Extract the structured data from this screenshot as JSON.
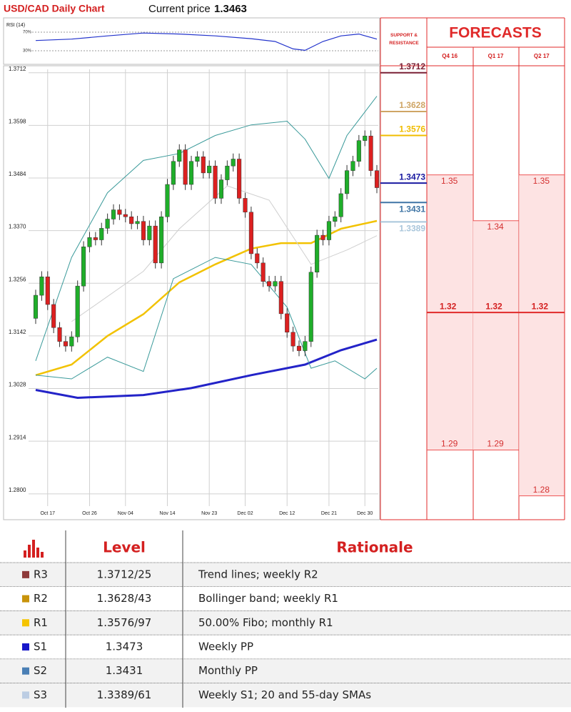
{
  "header": {
    "title": "USD/CAD Daily Chart",
    "current_price_label": "Current price",
    "current_price": 1.3463
  },
  "rsi": {
    "label": "RSI (14)",
    "color": "#2233cc",
    "x": [
      0,
      6,
      12,
      18,
      24,
      30,
      36,
      40,
      43,
      45,
      48,
      51,
      54,
      57
    ],
    "values": [
      52,
      55,
      62,
      68,
      66,
      62,
      56,
      50,
      34,
      31,
      50,
      62,
      66,
      55
    ],
    "ylim": [
      7,
      96
    ],
    "yticks": [
      {
        "value": 70,
        "label": "70%"
      },
      {
        "value": 30,
        "label": "30%"
      }
    ]
  },
  "chart_data": {
    "type": "candlestick",
    "categories": [
      null,
      null,
      "Oct 17",
      null,
      null,
      null,
      null,
      null,
      null,
      "Oct 26",
      null,
      null,
      null,
      null,
      null,
      "Nov 04",
      null,
      null,
      null,
      null,
      null,
      null,
      "Nov 14",
      null,
      null,
      null,
      null,
      null,
      null,
      "Nov 23",
      null,
      null,
      null,
      null,
      null,
      "Dec 02",
      null,
      null,
      null,
      null,
      null,
      null,
      "Dec 12",
      null,
      null,
      null,
      null,
      null,
      null,
      "Dec 21",
      null,
      null,
      null,
      null,
      null,
      "Dec 30",
      null,
      null
    ],
    "open": [
      1.318,
      1.323,
      1.327,
      1.321,
      1.316,
      1.313,
      1.312,
      1.314,
      1.325,
      1.3335,
      1.3355,
      1.335,
      1.3375,
      1.3395,
      1.3415,
      1.3405,
      1.34,
      1.3385,
      1.339,
      1.335,
      1.338,
      1.33,
      1.34,
      1.347,
      1.352,
      1.3545,
      1.347,
      1.352,
      1.353,
      1.3495,
      1.351,
      1.344,
      1.348,
      1.351,
      1.3525,
      1.344,
      1.341,
      1.332,
      1.33,
      1.326,
      1.325,
      1.326,
      1.319,
      1.315,
      1.312,
      1.311,
      1.313,
      1.328,
      1.336,
      1.335,
      1.339,
      1.34,
      1.345,
      1.35,
      1.352,
      1.3565,
      1.3575,
      1.35
    ],
    "high": [
      1.3242,
      1.3282,
      1.3282,
      1.3222,
      1.3172,
      1.3142,
      1.3152,
      1.3262,
      1.3347,
      1.3367,
      1.3367,
      1.3387,
      1.3407,
      1.3427,
      1.3427,
      1.3417,
      1.3412,
      1.3402,
      1.3402,
      1.3392,
      1.3392,
      1.3412,
      1.3482,
      1.3532,
      1.3557,
      1.3557,
      1.3532,
      1.3542,
      1.3542,
      1.3522,
      1.3522,
      1.3492,
      1.3522,
      1.3537,
      1.3537,
      1.3452,
      1.3422,
      1.3332,
      1.3312,
      1.3272,
      1.3272,
      1.3272,
      1.3202,
      1.3162,
      1.3132,
      1.3142,
      1.3292,
      1.3372,
      1.3372,
      1.3402,
      1.3412,
      1.3462,
      1.3512,
      1.3532,
      1.3577,
      1.3587,
      1.3587,
      1.3512
    ],
    "low": [
      1.3168,
      1.3218,
      1.3198,
      1.3148,
      1.3118,
      1.3108,
      1.3108,
      1.3128,
      1.3238,
      1.3323,
      1.3338,
      1.3338,
      1.3363,
      1.3383,
      1.3393,
      1.3388,
      1.3373,
      1.3373,
      1.3338,
      1.3338,
      1.3288,
      1.3288,
      1.3388,
      1.3458,
      1.3508,
      1.3458,
      1.3458,
      1.3508,
      1.3483,
      1.3483,
      1.3428,
      1.3428,
      1.3468,
      1.3498,
      1.3428,
      1.3398,
      1.3308,
      1.3288,
      1.3248,
      1.3238,
      1.3238,
      1.3178,
      1.3138,
      1.3108,
      1.3098,
      1.3098,
      1.3118,
      1.3268,
      1.3338,
      1.3338,
      1.3378,
      1.3388,
      1.3438,
      1.3488,
      1.3508,
      1.3553,
      1.3488,
      1.3451
    ],
    "close": [
      1.323,
      1.327,
      1.321,
      1.316,
      1.313,
      1.312,
      1.314,
      1.325,
      1.3335,
      1.3355,
      1.335,
      1.3375,
      1.3395,
      1.3415,
      1.3405,
      1.34,
      1.3385,
      1.339,
      1.335,
      1.338,
      1.33,
      1.34,
      1.347,
      1.352,
      1.3545,
      1.347,
      1.352,
      1.353,
      1.3495,
      1.351,
      1.344,
      1.348,
      1.351,
      1.3525,
      1.344,
      1.341,
      1.332,
      1.33,
      1.326,
      1.325,
      1.326,
      1.319,
      1.315,
      1.312,
      1.311,
      1.313,
      1.328,
      1.336,
      1.335,
      1.339,
      1.34,
      1.345,
      1.35,
      1.352,
      1.3565,
      1.3575,
      1.35,
      1.3463
    ],
    "up_color": "#1fae2a",
    "down_color": "#dc2020",
    "lines": [
      {
        "color": "#2323c8",
        "width": 3,
        "x": [
          0,
          7,
          18,
          26,
          36,
          45,
          51,
          57
        ],
        "values": [
          1.3025,
          1.3008,
          1.3014,
          1.3029,
          1.3057,
          1.308,
          1.3111,
          1.3134
        ]
      },
      {
        "color": "#f2c200",
        "width": 2.5,
        "x": [
          0,
          6,
          12,
          18,
          24,
          30,
          36,
          41,
          46,
          51,
          57
        ],
        "values": [
          1.3057,
          1.308,
          1.3142,
          1.3189,
          1.3258,
          1.3297,
          1.3331,
          1.3343,
          1.3343,
          1.3374,
          1.3391
        ]
      },
      {
        "color": "#3a9a9a",
        "width": 1,
        "x": [
          0,
          6,
          12,
          18,
          24,
          30,
          36,
          42,
          45,
          49,
          52,
          57
        ],
        "values": [
          1.3088,
          1.3312,
          1.3452,
          1.3522,
          1.3537,
          1.3576,
          1.3599,
          1.3607,
          1.3568,
          1.3483,
          1.3576,
          1.3661
        ]
      },
      {
        "color": "#3a9a9a",
        "width": 1,
        "x": [
          0,
          6,
          12,
          18,
          23,
          30,
          36,
          42,
          46,
          50,
          55,
          57
        ],
        "values": [
          1.3057,
          1.3049,
          1.3096,
          1.3065,
          1.3266,
          1.3312,
          1.3297,
          1.3204,
          1.3072,
          1.3088,
          1.3049,
          1.3072
        ]
      },
      {
        "color": "#cfcfcf",
        "width": 1,
        "x": [
          6,
          18,
          24,
          32,
          39,
          46,
          52,
          57
        ],
        "values": [
          1.3173,
          1.3282,
          1.3374,
          1.3467,
          1.3436,
          1.3297,
          1.3328,
          1.3359
        ]
      }
    ],
    "ylim": [
      1.2744,
      1.3727
    ],
    "yticks": [
      1.3712,
      1.3598,
      1.3484,
      {
        "value": 1.337,
        "label": "1.3370"
      },
      1.3256,
      1.3142,
      1.3028,
      1.2914,
      {
        "value": 1.28,
        "label": "1.2800"
      }
    ],
    "grid": true
  },
  "support_resistance": {
    "title": "SUPPORT & RESISTANCE",
    "levels": [
      1.3712,
      1.3628,
      1.3576,
      1.3473,
      1.3431,
      1.3389
    ],
    "colors": [
      "#7a2035",
      "#cfa565",
      "#f0bc00",
      "#1a1aa0",
      "#3f75a5",
      "#a9c6db"
    ]
  },
  "forecasts": {
    "title": "FORECASTS",
    "columns": [
      "Q4 16",
      "Q1 17",
      "Q2 17"
    ],
    "high": [
      1.35,
      1.34,
      1.35
    ],
    "mid": [
      1.32,
      1.32,
      1.32
    ],
    "low": [
      1.29,
      1.29,
      1.28
    ],
    "ylim": [
      1.2748,
      1.3738
    ]
  },
  "table": {
    "header": [
      "Level",
      "Rationale"
    ],
    "rows": [
      [
        "R3",
        "1.3712/25",
        "Trend lines; weekly R2"
      ],
      [
        "R2",
        "1.3628/43",
        "Bollinger band; weekly R1"
      ],
      [
        "R1",
        "1.3576/97",
        "50.00% Fibo; monthly R1"
      ],
      [
        "S1",
        1.3473,
        "Weekly PP"
      ],
      [
        "S2",
        1.3431,
        "Monthly PP"
      ],
      [
        "S3",
        "1.3389/61",
        "Weekly S1; 20 and 55-day SMAs"
      ]
    ],
    "colors": [
      "#8e3a3a",
      "#c8930a",
      "#f5c400",
      "#1717c9",
      "#4a7fb5",
      "#bccde3"
    ]
  }
}
